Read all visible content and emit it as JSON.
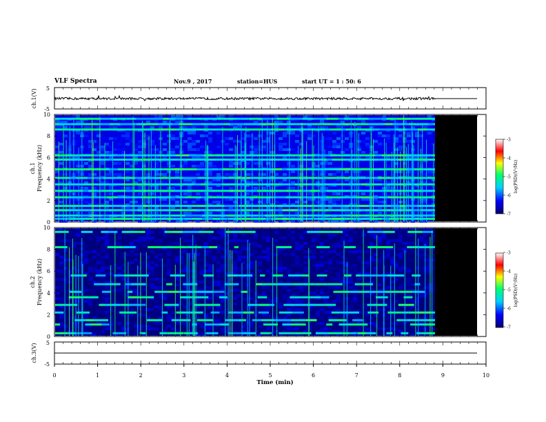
{
  "header": {
    "title": "VLF Spectra",
    "date": "Nov.9  , 2017",
    "station": "station=HUS",
    "start": "start  UT  =   1 : 50: 6"
  },
  "chart_data": [
    {
      "id": "ch1-waveform",
      "type": "line",
      "ylabel": "ch.1(V)",
      "ylim": [
        -5,
        5
      ],
      "yticks": [
        "5",
        "-5"
      ],
      "xlim": [
        0,
        10
      ],
      "signal_end_min": 8.83,
      "flat_after_end": true
    },
    {
      "id": "ch1-spectrogram",
      "type": "heatmap",
      "ylabel": "ch.1\nFrequency (kHz)",
      "ylim": [
        0,
        10
      ],
      "yticks": [
        "0",
        "2",
        "4",
        "6",
        "8",
        "10"
      ],
      "xlim": [
        0,
        10
      ],
      "data_end_min": 8.83,
      "bands_khz": [
        0.3,
        0.6,
        1.1,
        1.5,
        2.3,
        2.9,
        3.5,
        4.1,
        4.9,
        5.8,
        6.2,
        8.6,
        9.1,
        9.6
      ],
      "colorbar": {
        "label": "log(PSD)(V²/Hz)",
        "range": [
          -7,
          -3
        ],
        "ticks": [
          "-3",
          "-4",
          "-5",
          "-6",
          "-7"
        ]
      }
    },
    {
      "id": "ch2-spectrogram",
      "type": "heatmap",
      "ylabel": "ch.2\nFrequency (kHz)",
      "ylim": [
        0,
        10
      ],
      "yticks": [
        "0",
        "2",
        "4",
        "6",
        "8",
        "10"
      ],
      "xlim": [
        0,
        10
      ],
      "data_end_min": 8.83,
      "bands_khz": [
        0.3,
        1.1,
        1.5,
        2.2,
        2.9,
        3.6,
        4.1,
        4.8,
        5.6,
        8.2,
        9.6
      ],
      "colorbar": {
        "label": "log(PSD)(V²/Hz)",
        "range": [
          -7,
          -3
        ],
        "ticks": [
          "-3",
          "-4",
          "-5",
          "-6",
          "-7"
        ]
      }
    },
    {
      "id": "ch3-waveform",
      "type": "line",
      "ylabel": "ch.3(V)",
      "ylim": [
        -5,
        5
      ],
      "yticks": [
        "5",
        "-5"
      ],
      "xlim": [
        0,
        10
      ],
      "constant_value": 0
    }
  ],
  "xaxis": {
    "label": "Time  (min)",
    "ticks": [
      "0",
      "1",
      "2",
      "3",
      "4",
      "5",
      "6",
      "7",
      "8",
      "9",
      "10"
    ]
  },
  "colors": {
    "no_data": "#000000",
    "colormap": [
      "#00006e",
      "#0000ff",
      "#00d0ff",
      "#00ff70",
      "#ffff00",
      "#ff0000",
      "#ffffff"
    ]
  }
}
